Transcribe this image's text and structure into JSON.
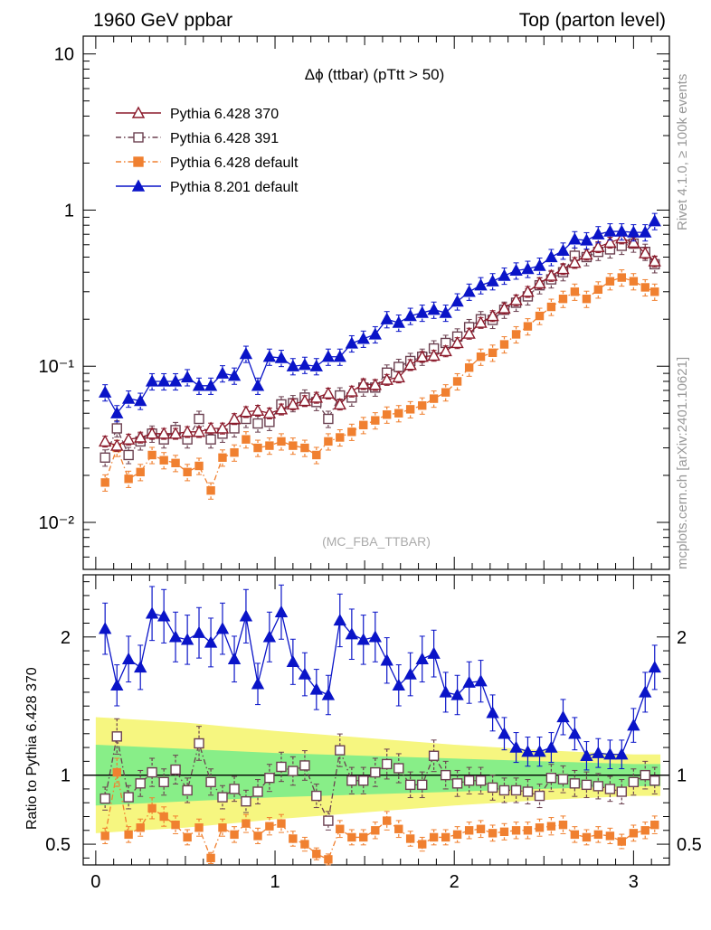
{
  "header": {
    "left_title": "1960 GeV ppbar",
    "right_title": "Top (parton level)"
  },
  "side_labels": {
    "version": "Rivet 4.1.0, ≥ 100k events",
    "source": "mcplots.cern.ch [arXiv:2401.10621]"
  },
  "colors": {
    "p370": "#8b1a2b",
    "p391": "#6b4050",
    "pdef": "#f08030",
    "p8": "#0a14c8",
    "band_inner": "#88ee88",
    "band_outer": "#f6f680"
  },
  "chart_data": [
    {
      "type": "scatter",
      "title": "Δϕ (ttbar) (pTtt > 50)",
      "watermark": "(MC_FBA_TTBAR)",
      "yscale": "log",
      "ylim": [
        0.005,
        13
      ],
      "xlim": [
        -0.07,
        3.2
      ],
      "ytick_labels": [
        "10",
        "1",
        "10⁻¹",
        "10⁻²"
      ],
      "x": [
        0.052,
        0.118,
        0.183,
        0.249,
        0.314,
        0.38,
        0.445,
        0.511,
        0.576,
        0.642,
        0.707,
        0.773,
        0.838,
        0.904,
        0.969,
        1.035,
        1.1,
        1.166,
        1.231,
        1.297,
        1.362,
        1.428,
        1.493,
        1.559,
        1.624,
        1.69,
        1.755,
        1.821,
        1.886,
        1.952,
        2.017,
        2.083,
        2.148,
        2.214,
        2.279,
        2.345,
        2.41,
        2.476,
        2.541,
        2.607,
        2.672,
        2.738,
        2.803,
        2.869,
        2.934,
        3.0,
        3.065,
        3.118
      ],
      "series": [
        {
          "name": "Pythia 6.428 370",
          "marker": "triangle-open",
          "style": "solid",
          "values": [
            0.033,
            0.031,
            0.034,
            0.035,
            0.037,
            0.037,
            0.037,
            0.038,
            0.038,
            0.04,
            0.04,
            0.046,
            0.051,
            0.052,
            0.05,
            0.053,
            0.057,
            0.06,
            0.063,
            0.067,
            0.057,
            0.069,
            0.077,
            0.076,
            0.082,
            0.085,
            0.102,
            0.115,
            0.117,
            0.125,
            0.141,
            0.162,
            0.19,
            0.21,
            0.235,
            0.265,
            0.3,
            0.34,
            0.38,
            0.42,
            0.46,
            0.52,
            0.58,
            0.62,
            0.66,
            0.62,
            0.53,
            0.47
          ]
        },
        {
          "name": "Pythia 6.428 391",
          "marker": "square-open",
          "style": "dashdot",
          "values": [
            0.026,
            0.04,
            0.027,
            0.033,
            0.037,
            0.034,
            0.039,
            0.034,
            0.046,
            0.034,
            0.037,
            0.04,
            0.046,
            0.043,
            0.044,
            0.057,
            0.058,
            0.063,
            0.059,
            0.046,
            0.065,
            0.063,
            0.073,
            0.073,
            0.091,
            0.099,
            0.108,
            0.115,
            0.13,
            0.141,
            0.155,
            0.178,
            0.2,
            0.198,
            0.23,
            0.255,
            0.28,
            0.33,
            0.36,
            0.4,
            0.51,
            0.5,
            0.54,
            0.56,
            0.59,
            0.61,
            0.54,
            0.45
          ]
        },
        {
          "name": "Pythia 6.428 default",
          "marker": "square-filled",
          "style": "dashdot",
          "values": [
            0.018,
            0.03,
            0.019,
            0.021,
            0.027,
            0.025,
            0.024,
            0.021,
            0.023,
            0.016,
            0.026,
            0.028,
            0.034,
            0.03,
            0.031,
            0.033,
            0.031,
            0.03,
            0.027,
            0.033,
            0.035,
            0.038,
            0.042,
            0.045,
            0.049,
            0.05,
            0.053,
            0.056,
            0.062,
            0.068,
            0.08,
            0.098,
            0.115,
            0.122,
            0.138,
            0.16,
            0.18,
            0.21,
            0.24,
            0.27,
            0.3,
            0.27,
            0.31,
            0.35,
            0.37,
            0.35,
            0.32,
            0.3
          ]
        },
        {
          "name": "Pythia 8.201 default",
          "marker": "triangle-filled",
          "style": "solid",
          "values": [
            0.068,
            0.05,
            0.062,
            0.06,
            0.08,
            0.08,
            0.08,
            0.085,
            0.075,
            0.075,
            0.09,
            0.087,
            0.12,
            0.075,
            0.115,
            0.113,
            0.1,
            0.102,
            0.1,
            0.115,
            0.115,
            0.14,
            0.15,
            0.16,
            0.2,
            0.19,
            0.21,
            0.22,
            0.23,
            0.22,
            0.26,
            0.3,
            0.33,
            0.35,
            0.38,
            0.41,
            0.42,
            0.44,
            0.5,
            0.55,
            0.65,
            0.64,
            0.7,
            0.73,
            0.73,
            0.72,
            0.72,
            0.85
          ]
        }
      ]
    },
    {
      "type": "scatter",
      "ylabel": "Ratio to Pythia 6.428 370",
      "ylim": [
        0.35,
        2.45
      ],
      "ytick_labels": [
        "2",
        "1",
        "0.5"
      ],
      "xtick_labels": [
        "0",
        "1",
        "2",
        "3"
      ],
      "x": [
        0.052,
        0.118,
        0.183,
        0.249,
        0.314,
        0.38,
        0.445,
        0.511,
        0.576,
        0.642,
        0.707,
        0.773,
        0.838,
        0.904,
        0.969,
        1.035,
        1.1,
        1.166,
        1.231,
        1.297,
        1.362,
        1.428,
        1.493,
        1.559,
        1.624,
        1.69,
        1.755,
        1.821,
        1.886,
        1.952,
        2.017,
        2.083,
        2.148,
        2.214,
        2.279,
        2.345,
        2.41,
        2.476,
        2.541,
        2.607,
        2.672,
        2.738,
        2.803,
        2.869,
        2.934,
        3.0,
        3.065,
        3.118
      ],
      "series": [
        {
          "name": "Pythia 6.428 391",
          "values": [
            0.83,
            1.28,
            0.84,
            0.94,
            1.02,
            0.95,
            1.04,
            0.89,
            1.23,
            0.95,
            0.84,
            0.9,
            0.81,
            0.88,
            0.98,
            1.06,
            1.03,
            1.07,
            0.85,
            0.67,
            1.18,
            0.96,
            0.96,
            1.02,
            1.08,
            1.05,
            0.93,
            0.93,
            1.14,
            1.0,
            0.94,
            0.96,
            0.96,
            0.91,
            0.89,
            0.89,
            0.88,
            0.85,
            0.98,
            0.97,
            0.94,
            0.93,
            0.92,
            0.9,
            0.88,
            0.95,
            1.0,
            0.96
          ]
        },
        {
          "name": "Pythia 6.428 default",
          "values": [
            0.56,
            1.02,
            0.57,
            0.62,
            0.76,
            0.7,
            0.64,
            0.55,
            0.62,
            0.4,
            0.62,
            0.57,
            0.65,
            0.56,
            0.63,
            0.65,
            0.54,
            0.5,
            0.43,
            0.39,
            0.61,
            0.55,
            0.55,
            0.6,
            0.67,
            0.61,
            0.54,
            0.5,
            0.55,
            0.55,
            0.57,
            0.6,
            0.61,
            0.58,
            0.59,
            0.6,
            0.6,
            0.62,
            0.63,
            0.64,
            0.57,
            0.55,
            0.57,
            0.56,
            0.52,
            0.58,
            0.6,
            0.64
          ]
        },
        {
          "name": "Pythia 8.201 default",
          "values": [
            2.06,
            1.65,
            1.84,
            1.78,
            2.17,
            2.15,
            2.0,
            1.98,
            2.03,
            1.96,
            2.06,
            1.84,
            2.15,
            1.66,
            2.0,
            2.18,
            1.82,
            1.73,
            1.62,
            1.58,
            2.12,
            2.02,
            1.98,
            2.0,
            1.83,
            1.65,
            1.73,
            1.84,
            1.88,
            1.6,
            1.58,
            1.67,
            1.68,
            1.45,
            1.3,
            1.2,
            1.17,
            1.17,
            1.2,
            1.42,
            1.3,
            1.14,
            1.16,
            1.15,
            1.15,
            1.36,
            1.6,
            1.78
          ]
        }
      ],
      "band": {
        "x": [
          0.0,
          0.5,
          1.0,
          1.5,
          2.0,
          2.5,
          3.0,
          3.15
        ],
        "inner": [
          0.22,
          0.19,
          0.16,
          0.14,
          0.12,
          0.1,
          0.08,
          0.08
        ],
        "outer": [
          0.42,
          0.38,
          0.32,
          0.27,
          0.22,
          0.18,
          0.15,
          0.15
        ]
      }
    }
  ]
}
